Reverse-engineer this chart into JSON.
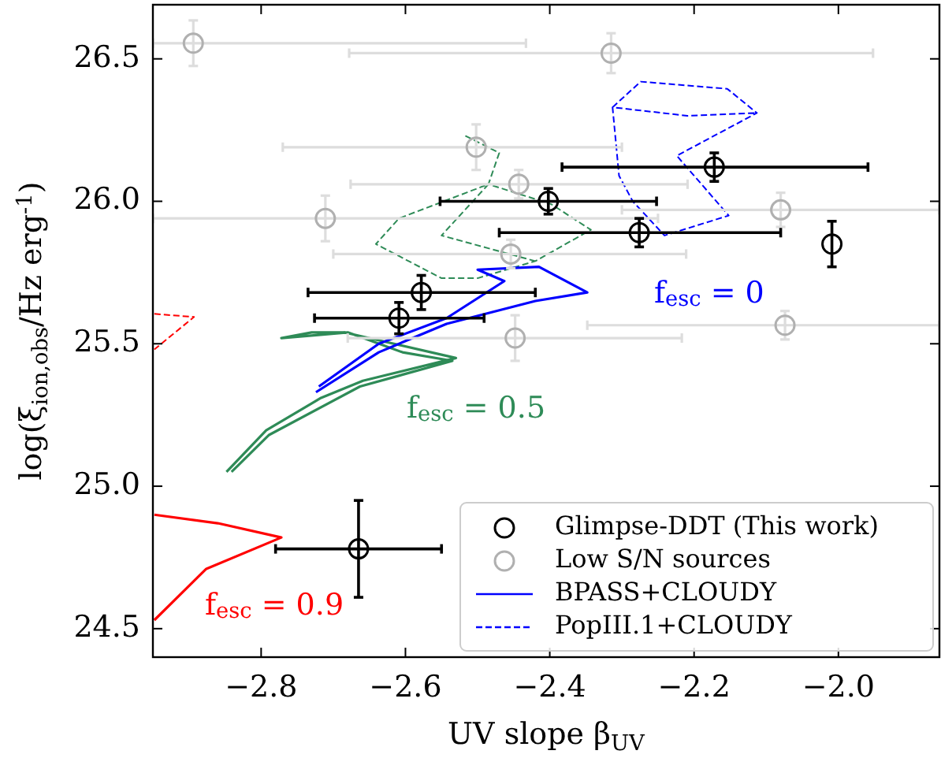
{
  "chart_data": {
    "type": "scatter",
    "xlabel": "UV slope β$_{UV}$",
    "ylabel": "log(ξ$_{ion,obs}$/Hz erg$^{-1}$)",
    "xlim": [
      -2.95,
      -1.86
    ],
    "xticks": [
      {
        "value": -2.8,
        "label": "−2.8"
      },
      {
        "value": -2.6,
        "label": "−2.6"
      },
      {
        "value": -2.4,
        "label": "−2.4"
      },
      {
        "value": -2.2,
        "label": "−2.2"
      },
      {
        "value": -2.0,
        "label": "−2.0"
      }
    ],
    "ylim": [
      24.4,
      26.69
    ],
    "yticks": [
      24.5,
      {
        "value": 25.0,
        "label": "25.0"
      },
      25.5,
      {
        "value": 26.0,
        "label": "26.0"
      },
      26.5
    ],
    "grid": false,
    "legend": "bottom right",
    "series": [
      {
        "type": "line",
        "color": "#ff0000",
        "line_style": "dashed",
        "x": [
          -2.948,
          -2.893,
          -2.948
        ],
        "values": [
          25.605,
          25.594,
          25.48
        ]
      },
      {
        "type": "line",
        "color": "#2e8b57",
        "line_style": "dashed",
        "x": [
          -2.517,
          -2.47,
          -2.485,
          -2.398,
          -2.343,
          -2.42,
          -2.5,
          -2.55,
          -2.641,
          -2.609,
          -2.485,
          -2.55,
          -2.42
        ],
        "values": [
          26.23,
          26.17,
          26.06,
          25.99,
          25.9,
          25.79,
          25.73,
          25.73,
          25.85,
          25.94,
          26.06,
          25.88,
          25.79
        ]
      },
      {
        "type": "line",
        "color": "#0000ff",
        "line_style": "dashed",
        "name": "PopIII.1+CLOUDY",
        "x": [
          -2.313,
          -2.274,
          -2.154,
          -2.113,
          -2.224,
          -2.152,
          -2.241,
          -2.285,
          -2.304,
          -2.313,
          -2.209,
          -2.113
        ],
        "values": [
          26.33,
          26.42,
          26.395,
          26.31,
          26.16,
          25.95,
          25.88,
          26.0,
          26.09,
          26.33,
          26.3,
          26.31
        ]
      },
      {
        "type": "line",
        "color": "#2e8b57",
        "line_style": "solid",
        "x": [
          -2.848,
          -2.793,
          -2.717,
          -2.659,
          -2.53,
          -2.685,
          -2.73,
          -2.772,
          -2.724,
          -2.68,
          -2.604,
          -2.535,
          -2.663,
          -2.789,
          -2.841
        ],
        "values": [
          25.05,
          25.196,
          25.31,
          25.37,
          25.45,
          25.54,
          25.54,
          25.52,
          25.53,
          25.54,
          25.47,
          25.44,
          25.35,
          25.18,
          25.05
        ]
      },
      {
        "type": "line",
        "color": "#0000ff",
        "line_style": "solid",
        "name": "BPASS+CLOUDY",
        "x": [
          -2.724,
          -2.637,
          -2.543,
          -2.42,
          -2.348,
          -2.415,
          -2.5,
          -2.463,
          -2.543,
          -2.637,
          -2.72
        ],
        "values": [
          25.33,
          25.47,
          25.57,
          25.65,
          25.68,
          25.77,
          25.76,
          25.72,
          25.59,
          25.5,
          25.35
        ]
      },
      {
        "type": "line",
        "color": "#ff0000",
        "line_style": "solid",
        "x": [
          -2.948,
          -2.86,
          -2.772,
          -2.876,
          -2.948
        ],
        "values": [
          24.9,
          24.87,
          24.82,
          24.71,
          24.53
        ]
      },
      {
        "color": "#b0b0b0",
        "name": "Low S/N sources",
        "marker": "circle",
        "x": [
          -2.894,
          -2.315,
          -2.502,
          -2.443,
          -2.711,
          -2.08,
          -2.454,
          -2.448,
          -2.074
        ],
        "values": [
          26.555,
          26.52,
          26.19,
          26.06,
          25.94,
          25.97,
          25.815,
          25.52,
          25.565
        ],
        "errors": [
          0.08,
          0.07,
          0.08,
          0.05,
          0.08,
          0.06,
          0.05,
          0.08,
          0.05
        ],
        "xerrors": [
          [
            -2.95,
            -2.433
          ],
          [
            -2.678,
            -1.952
          ],
          [
            -2.77,
            -2.3
          ],
          [
            -2.676,
            -2.209
          ],
          [
            -2.95,
            -2.25
          ],
          [
            -2.3,
            -1.86
          ],
          [
            -2.7,
            -2.211
          ],
          [
            -2.68,
            -2.217
          ],
          [
            -2.348,
            -1.86
          ]
        ]
      },
      {
        "color": "#000000",
        "name": "Glimpse-DDT (This work)",
        "marker": "circle",
        "x": [
          -2.172,
          -2.402,
          -2.276,
          -2.009,
          -2.578,
          -2.609,
          -2.665
        ],
        "values": [
          26.12,
          26.0,
          25.89,
          25.85,
          25.68,
          25.59,
          24.78
        ],
        "errors": [
          0.05,
          0.045,
          0.05,
          0.08,
          0.06,
          0.055,
          0.17
        ],
        "xerrors": [
          [
            -2.383,
            -1.959
          ],
          [
            -2.552,
            -2.252
          ],
          [
            -2.47,
            -2.08
          ],
          null,
          [
            -2.735,
            -2.42
          ],
          [
            -2.726,
            -2.491
          ],
          [
            -2.78,
            -2.55
          ]
        ]
      }
    ],
    "annotations": [
      "f$_{esc}$ = 0",
      "f$_{esc}$ = 0.5",
      "f$_{esc}$ = 0.9"
    ]
  }
}
